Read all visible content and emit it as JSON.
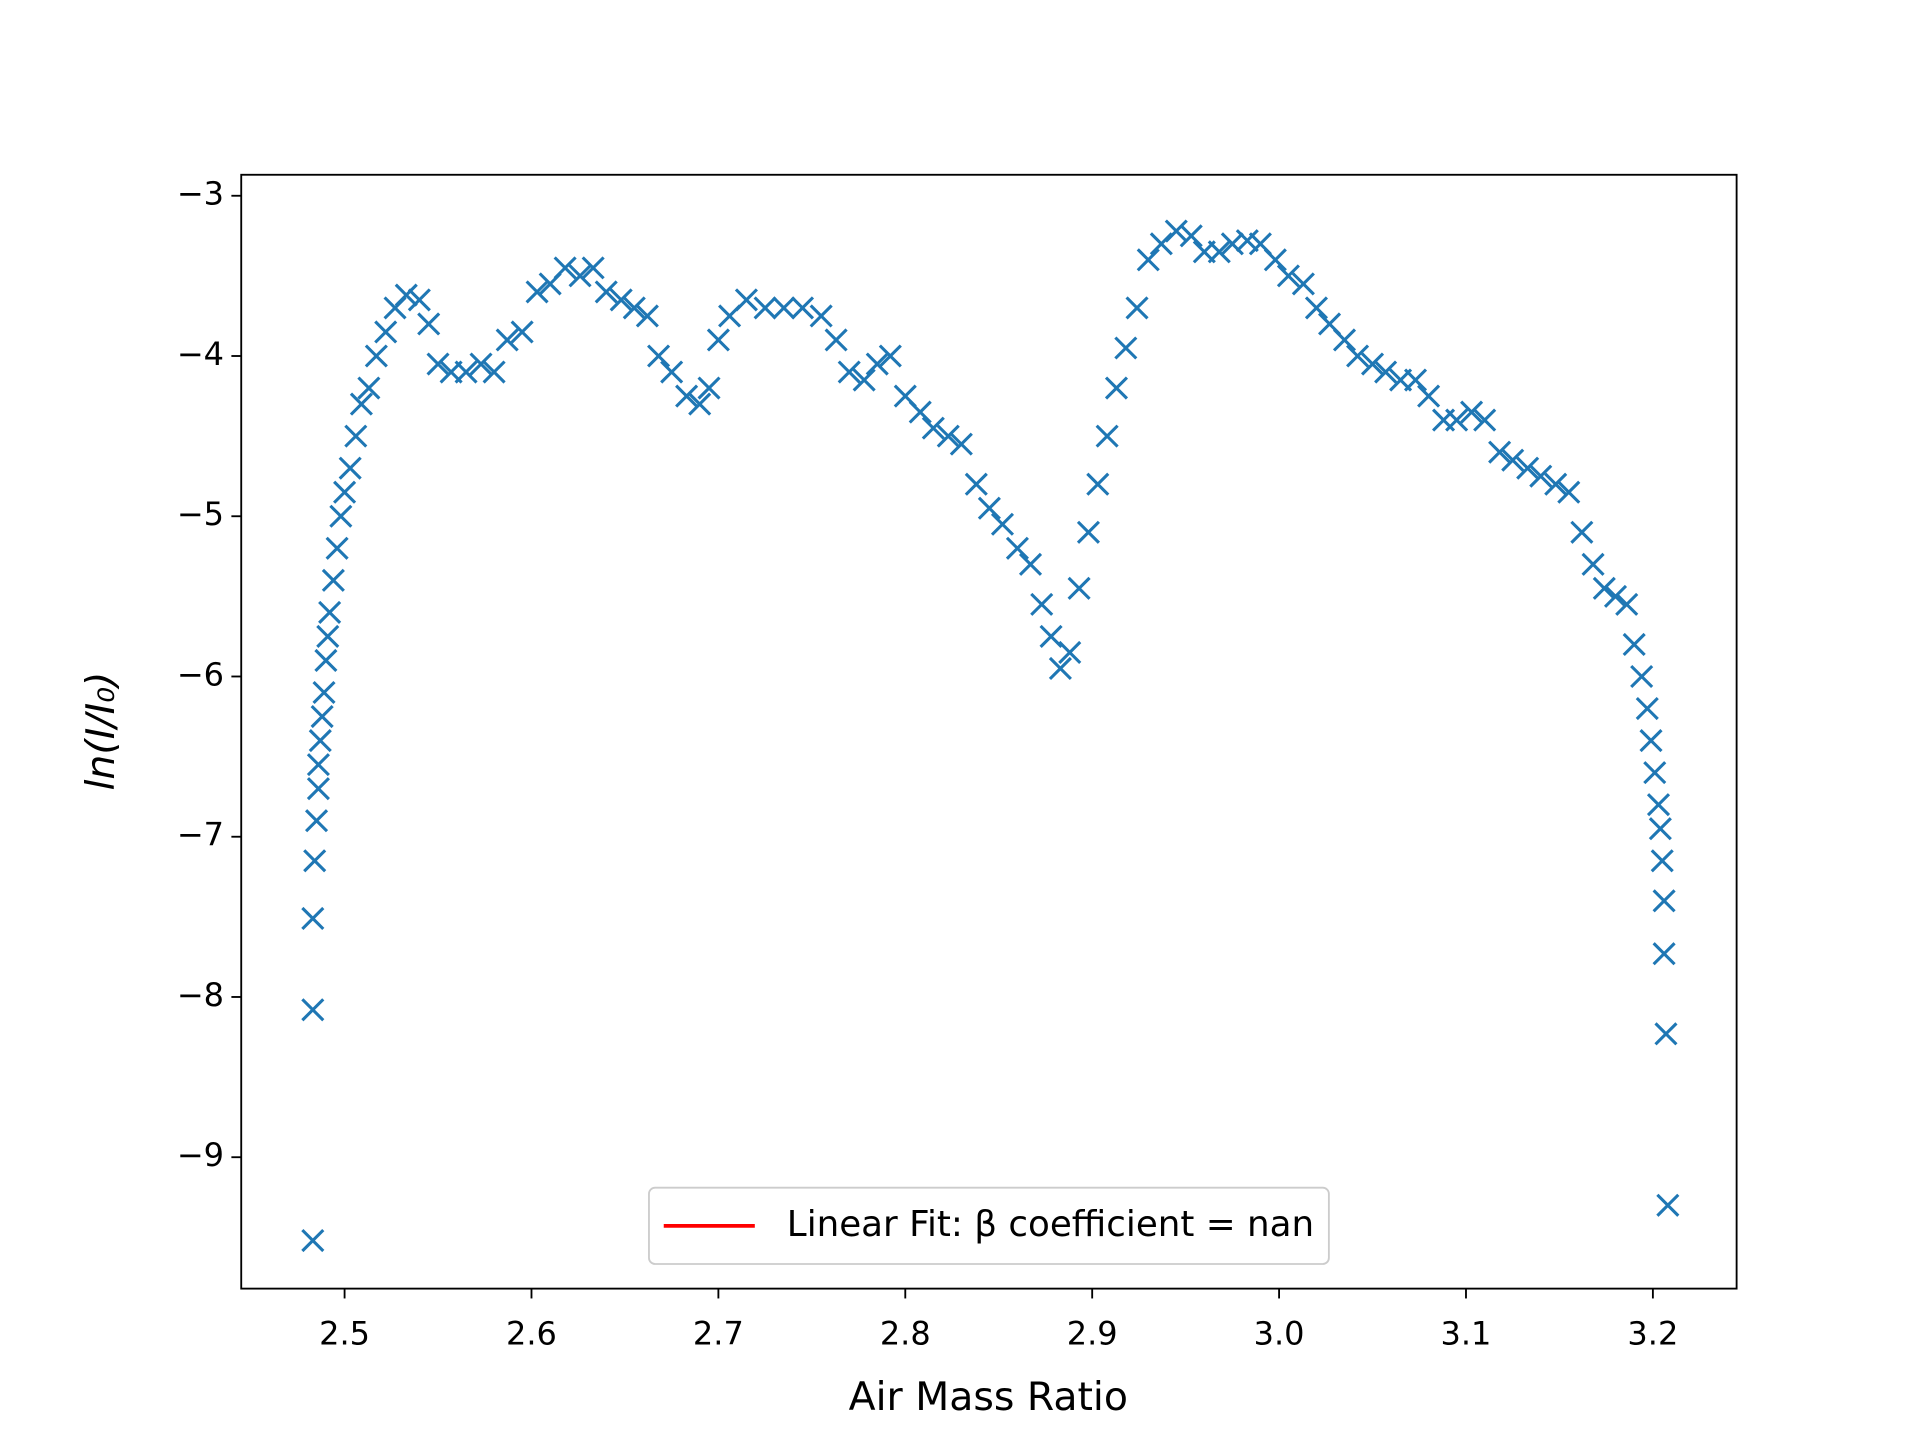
{
  "chart_data": {
    "type": "scatter",
    "xlabel": "Air Mass Ratio",
    "ylabel": "ln(I/I₀)",
    "xlim": [
      2.4447,
      3.2448
    ],
    "ylim": [
      -9.82,
      -2.869
    ],
    "xticks": [
      2.5,
      2.6,
      2.7,
      2.8,
      2.9,
      {
        "value": 3.0,
        "label": "3.0"
      },
      3.1,
      3.2
    ],
    "yticks": [
      {
        "value": -9,
        "label": "−9"
      },
      {
        "value": -8,
        "label": "−8"
      },
      {
        "value": -7,
        "label": "−7"
      },
      {
        "value": -6,
        "label": "−6"
      },
      {
        "value": -5,
        "label": "−5"
      },
      {
        "value": -4,
        "label": "−4"
      },
      {
        "value": -3,
        "label": "−3"
      }
    ],
    "grid": false,
    "legend": "lower center",
    "series": [
      {
        "color": "#1f77b4",
        "marker": "x",
        "x": [
          2.483,
          2.483,
          2.483,
          2.484,
          2.485,
          2.486,
          2.486,
          2.487,
          2.488,
          2.489,
          2.49,
          2.491,
          2.492,
          2.494,
          2.496,
          2.498,
          2.5,
          2.503,
          2.506,
          2.509,
          2.513,
          2.517,
          2.522,
          2.527,
          2.533,
          2.54,
          2.545,
          2.55,
          2.557,
          2.565,
          2.573,
          2.58,
          2.587,
          2.595,
          2.603,
          2.61,
          2.618,
          2.626,
          2.633,
          2.64,
          2.648,
          2.655,
          2.662,
          2.668,
          2.675,
          2.683,
          2.69,
          2.695,
          2.7,
          2.706,
          2.715,
          2.725,
          2.735,
          2.745,
          2.755,
          2.763,
          2.77,
          2.778,
          2.785,
          2.792,
          2.8,
          2.808,
          2.815,
          2.823,
          2.83,
          2.838,
          2.845,
          2.852,
          2.86,
          2.867,
          2.873,
          2.878,
          2.883,
          2.888,
          2.893,
          2.898,
          2.903,
          2.908,
          2.913,
          2.918,
          2.924,
          2.93,
          2.937,
          2.945,
          2.953,
          2.96,
          2.968,
          2.975,
          2.983,
          2.99,
          2.998,
          3.005,
          3.013,
          3.02,
          3.027,
          3.035,
          3.042,
          3.05,
          3.057,
          3.065,
          3.073,
          3.08,
          3.088,
          3.095,
          3.103,
          3.11,
          3.118,
          3.125,
          3.133,
          3.14,
          3.148,
          3.155,
          3.162,
          3.168,
          3.174,
          3.18,
          3.186,
          3.19,
          3.194,
          3.197,
          3.199,
          3.201,
          3.203,
          3.204,
          3.205,
          3.206,
          3.206,
          3.207,
          3.208
        ],
        "values": [
          -9.52,
          -8.08,
          -7.51,
          -7.15,
          -6.9,
          -6.7,
          -6.55,
          -6.4,
          -6.25,
          -6.1,
          -5.9,
          -5.75,
          -5.6,
          -5.4,
          -5.2,
          -5.0,
          -4.85,
          -4.7,
          -4.5,
          -4.3,
          -4.2,
          -4.0,
          -3.85,
          -3.7,
          -3.62,
          -3.65,
          -3.8,
          -4.05,
          -4.1,
          -4.1,
          -4.05,
          -4.1,
          -3.9,
          -3.85,
          -3.6,
          -3.55,
          -3.45,
          -3.5,
          -3.45,
          -3.6,
          -3.65,
          -3.7,
          -3.75,
          -4.0,
          -4.1,
          -4.25,
          -4.3,
          -4.2,
          -3.9,
          -3.75,
          -3.65,
          -3.7,
          -3.7,
          -3.7,
          -3.75,
          -3.9,
          -4.1,
          -4.15,
          -4.05,
          -4.0,
          -4.25,
          -4.35,
          -4.45,
          -4.5,
          -4.55,
          -4.8,
          -4.95,
          -5.05,
          -5.2,
          -5.3,
          -5.55,
          -5.75,
          -5.95,
          -5.85,
          -5.45,
          -5.1,
          -4.8,
          -4.5,
          -4.2,
          -3.95,
          -3.7,
          -3.4,
          -3.3,
          -3.22,
          -3.25,
          -3.35,
          -3.35,
          -3.3,
          -3.28,
          -3.3,
          -3.4,
          -3.5,
          -3.55,
          -3.7,
          -3.8,
          -3.9,
          -4.0,
          -4.05,
          -4.1,
          -4.15,
          -4.15,
          -4.25,
          -4.4,
          -4.4,
          -4.35,
          -4.4,
          -4.6,
          -4.65,
          -4.7,
          -4.75,
          -4.8,
          -4.85,
          -5.1,
          -5.3,
          -5.45,
          -5.5,
          -5.55,
          -5.8,
          -6.0,
          -6.2,
          -6.4,
          -6.6,
          -6.8,
          -6.95,
          -7.15,
          -7.4,
          -7.73,
          -8.23,
          -9.3
        ]
      },
      {
        "name": "Linear Fit: β coefficient = nan",
        "color": "red",
        "marker": "line",
        "x": [],
        "values": []
      }
    ]
  }
}
